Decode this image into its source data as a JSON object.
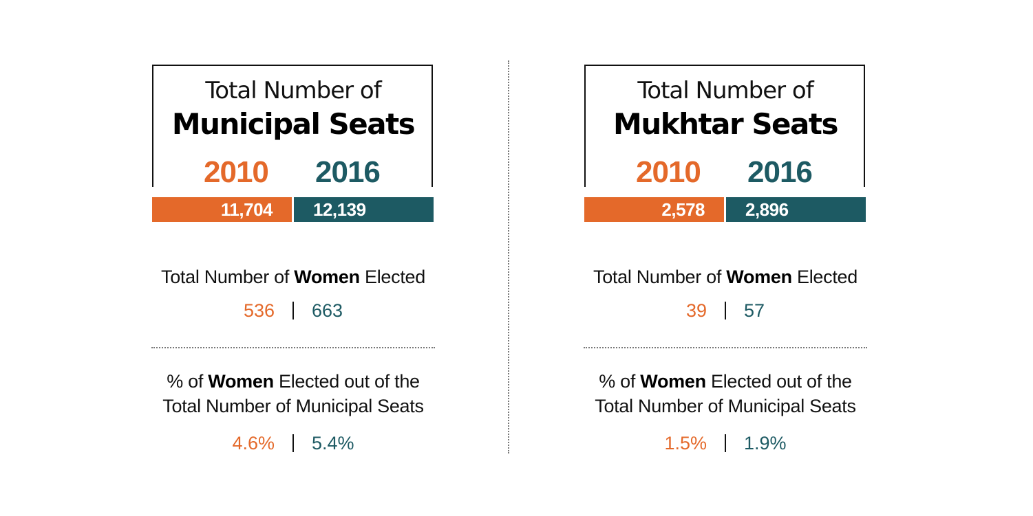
{
  "panels": [
    {
      "title_line1": "Total Number of",
      "title_line2": "Municipal Seats",
      "year_a": "2010",
      "year_b": "2016",
      "seats_a": "11,704",
      "seats_b": "12,139",
      "women_prefix": "Total Number of ",
      "women_bold": "Women",
      "women_suffix": " Elected",
      "women_a": "536",
      "women_b": "663",
      "pct_prefix": "% of ",
      "pct_bold": "Women",
      "pct_suffix": " Elected out of the",
      "pct_line2": "Total Number of Municipal Seats",
      "pct_a": "4.6%",
      "pct_b": "5.4%"
    },
    {
      "title_line1": "Total Number of",
      "title_line2": "Mukhtar Seats",
      "year_a": "2010",
      "year_b": "2016",
      "seats_a": "2,578",
      "seats_b": "2,896",
      "women_prefix": "Total Number of ",
      "women_bold": "Women",
      "women_suffix": " Elected",
      "women_a": "39",
      "women_b": "57",
      "pct_prefix": "% of ",
      "pct_bold": "Women",
      "pct_suffix": " Elected out of the",
      "pct_line2": "Total Number of Municipal Seats",
      "pct_a": "1.5%",
      "pct_b": "1.9%"
    }
  ],
  "colors": {
    "year_2010": "#e4692a",
    "year_2016": "#1d5a63"
  }
}
